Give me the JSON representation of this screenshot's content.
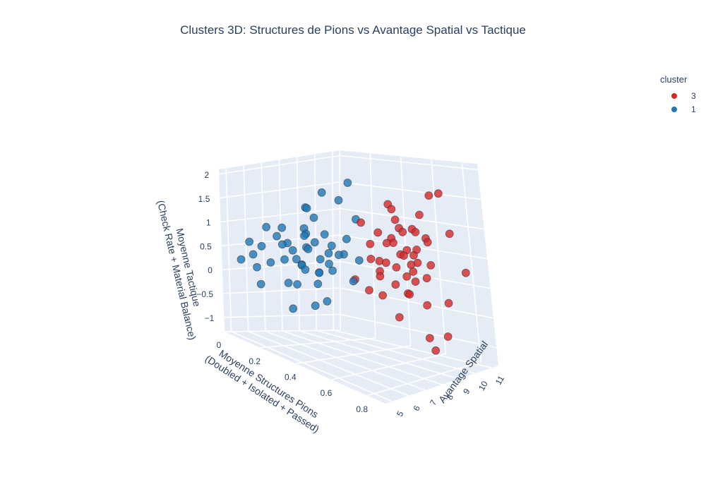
{
  "chart_data": {
    "type": "scatter",
    "title": "Clusters 3D: Structures de Pions vs Avantage Spatial vs Tactique",
    "xlabel": [
      "Moyenne Structures Pions",
      "(Doubled + Isolated + Passed)"
    ],
    "ylabel": "Avantage Spatial",
    "zlabel": [
      "Moyenne Tactique",
      "(Check Rate + Material Balance)"
    ],
    "xlim": [
      0,
      0.9
    ],
    "ylim": [
      4.6,
      11.4
    ],
    "zlim": [
      -1.3,
      2.1
    ],
    "xticks": [
      "0",
      "0.2",
      "0.4",
      "0.6",
      "0.8"
    ],
    "xtick_values": [
      0,
      0.2,
      0.4,
      0.6,
      0.8
    ],
    "yticks": [
      "5",
      "6",
      "7",
      "8",
      "9",
      "10",
      "11"
    ],
    "ytick_values": [
      5,
      6,
      7,
      8,
      9,
      10,
      11
    ],
    "zticks": [
      "−1",
      "−0.5",
      "0",
      "0.5",
      "1",
      "1.5",
      "2"
    ],
    "ztick_values": [
      -1,
      -0.5,
      0,
      0.5,
      1,
      1.5,
      2
    ],
    "legend_title": "cluster",
    "legend_position": "top-right",
    "series": [
      {
        "name": "3",
        "color": "#d62728",
        "points": [
          [
            0.55,
            9.6,
            0.6
          ],
          [
            0.5,
            9.2,
            0.45
          ],
          [
            0.6,
            9.8,
            0.3
          ],
          [
            0.45,
            8.8,
            0.8
          ],
          [
            0.52,
            9.4,
            0.9
          ],
          [
            0.58,
            10.1,
            0.55
          ],
          [
            0.48,
            9.0,
            0.2
          ],
          [
            0.62,
            9.9,
            0.7
          ],
          [
            0.56,
            9.5,
            1.1
          ],
          [
            0.5,
            9.7,
            0.0
          ],
          [
            0.66,
            10.3,
            0.4
          ],
          [
            0.44,
            8.9,
            0.5
          ],
          [
            0.6,
            9.3,
            0.65
          ],
          [
            0.54,
            10.0,
            0.15
          ],
          [
            0.47,
            9.1,
            1.0
          ],
          [
            0.59,
            9.6,
            -0.1
          ],
          [
            0.63,
            10.4,
            0.85
          ],
          [
            0.51,
            8.7,
            0.35
          ],
          [
            0.57,
            9.2,
            1.3
          ],
          [
            0.53,
            10.2,
            0.6
          ],
          [
            0.65,
            9.4,
            0.2
          ],
          [
            0.49,
            9.8,
            0.75
          ],
          [
            0.61,
            10.0,
            1.0
          ],
          [
            0.46,
            9.3,
            -0.2
          ],
          [
            0.55,
            8.8,
            0.9
          ],
          [
            0.64,
            9.7,
            0.5
          ],
          [
            0.52,
            10.5,
            0.3
          ],
          [
            0.58,
            9.0,
            0.45
          ],
          [
            0.5,
            9.5,
            1.5
          ],
          [
            0.6,
            10.6,
            0.1
          ],
          [
            0.72,
            11.0,
            0.9
          ],
          [
            0.7,
            10.8,
            -0.3
          ],
          [
            0.68,
            10.9,
            1.6
          ],
          [
            0.82,
            10.8,
            0.3
          ],
          [
            0.75,
            9.6,
            1.8
          ],
          [
            0.78,
            9.0,
            -0.9
          ],
          [
            0.8,
            8.5,
            -0.6
          ],
          [
            0.74,
            10.2,
            -0.8
          ],
          [
            0.65,
            8.2,
            1.7
          ],
          [
            0.44,
            7.9,
            0.2
          ],
          [
            0.42,
            8.6,
            1.2
          ],
          [
            0.48,
            8.3,
            0.0
          ],
          [
            0.57,
            10.7,
            1.2
          ],
          [
            0.67,
            9.2,
            1.2
          ],
          [
            0.62,
            8.6,
            -0.4
          ],
          [
            0.7,
            9.5,
            -0.2
          ],
          [
            0.54,
            8.4,
            0.6
          ],
          [
            0.5,
            10.3,
            0.9
          ],
          [
            0.59,
            10.9,
            0.7
          ],
          [
            0.63,
            9.1,
            0.0
          ]
        ]
      },
      {
        "name": "1",
        "color": "#1f77b4",
        "points": [
          [
            0.2,
            7.5,
            0.6
          ],
          [
            0.25,
            7.8,
            0.4
          ],
          [
            0.15,
            7.2,
            0.5
          ],
          [
            0.3,
            8.0,
            0.7
          ],
          [
            0.22,
            7.0,
            0.3
          ],
          [
            0.18,
            7.6,
            0.8
          ],
          [
            0.28,
            7.4,
            0.2
          ],
          [
            0.12,
            6.9,
            0.6
          ],
          [
            0.26,
            8.2,
            0.5
          ],
          [
            0.21,
            7.3,
            1.0
          ],
          [
            0.16,
            7.8,
            0.1
          ],
          [
            0.32,
            7.6,
            0.4
          ],
          [
            0.1,
            7.1,
            0.9
          ],
          [
            0.24,
            6.8,
            0.35
          ],
          [
            0.19,
            8.1,
            0.65
          ],
          [
            0.29,
            7.2,
            0.0
          ],
          [
            0.14,
            7.5,
            0.3
          ],
          [
            0.27,
            7.9,
            0.9
          ],
          [
            0.08,
            6.6,
            0.2
          ],
          [
            0.2,
            6.9,
            -0.1
          ],
          [
            0.34,
            8.3,
            0.55
          ],
          [
            0.05,
            6.4,
            0.5
          ],
          [
            0.23,
            7.7,
            1.2
          ],
          [
            0.17,
            6.7,
            0.7
          ],
          [
            0.31,
            7.1,
            0.25
          ],
          [
            0.11,
            7.3,
            -0.2
          ],
          [
            0.36,
            7.8,
            0.6
          ],
          [
            0.13,
            6.5,
            0.8
          ],
          [
            0.26,
            8.4,
            0.15
          ],
          [
            0.02,
            6.2,
            0.3
          ],
          [
            0.22,
            7.4,
            1.4
          ],
          [
            0.3,
            6.9,
            -0.4
          ],
          [
            0.06,
            6.0,
            0.1
          ],
          [
            0.38,
            8.1,
            0.9
          ],
          [
            0.04,
            5.8,
            0.6
          ],
          [
            0.27,
            6.8,
            1.0
          ],
          [
            0.15,
            8.0,
            1.3
          ],
          [
            0.33,
            7.3,
            -0.3
          ],
          [
            0.09,
            5.9,
            -0.2
          ],
          [
            0.2,
            8.5,
            1.6
          ],
          [
            0.35,
            8.6,
            1.9
          ],
          [
            0.4,
            8.2,
            0.1
          ],
          [
            0.28,
            8.7,
            1.5
          ],
          [
            0.01,
            5.6,
            0.2
          ],
          [
            0.18,
            6.4,
            0.4
          ],
          [
            0.24,
            6.2,
            -0.5
          ],
          [
            0.37,
            8.8,
            1.2
          ],
          [
            0.12,
            6.0,
            1.0
          ],
          [
            0.3,
            6.6,
            0.75
          ],
          [
            0.42,
            8.4,
            0.5
          ]
        ]
      }
    ]
  }
}
